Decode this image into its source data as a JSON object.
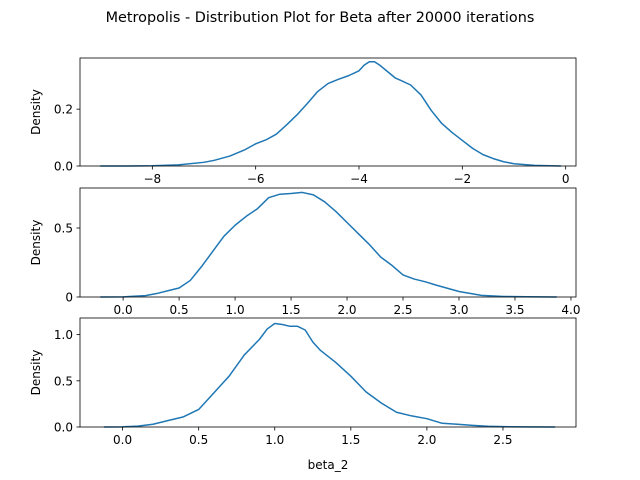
{
  "figure": {
    "suptitle": "Metropolis - Distribution Plot for Beta after 20000 iterations",
    "line_color": "#1f77b4"
  },
  "chart_data": [
    {
      "type": "line",
      "title": "",
      "xlabel": "",
      "ylabel": "Density",
      "xlim": [
        -9.4,
        0.2
      ],
      "ylim": [
        0,
        0.38
      ],
      "xticks": [
        -8,
        -6,
        -4,
        -2,
        0
      ],
      "xtick_labels": [
        "−8",
        "−6",
        "−4",
        "−2",
        "0"
      ],
      "yticks": [
        0.0,
        0.2
      ],
      "ytick_labels": [
        "0.0",
        "0.2"
      ],
      "grid": false,
      "series": [
        {
          "x": [
            -9.0,
            -8.5,
            -8.0,
            -7.5,
            -7.0,
            -6.8,
            -6.5,
            -6.2,
            -6.0,
            -5.8,
            -5.6,
            -5.4,
            -5.2,
            -5.0,
            -4.8,
            -4.6,
            -4.4,
            -4.2,
            -4.0,
            -3.9,
            -3.8,
            -3.7,
            -3.6,
            -3.5,
            -3.4,
            -3.3,
            -3.2,
            -3.0,
            -2.8,
            -2.6,
            -2.4,
            -2.2,
            -2.0,
            -1.8,
            -1.6,
            -1.4,
            -1.2,
            -1.0,
            -0.6,
            -0.1
          ],
          "y": [
            0.0,
            0.0,
            0.001,
            0.004,
            0.013,
            0.02,
            0.035,
            0.058,
            0.078,
            0.092,
            0.112,
            0.145,
            0.18,
            0.22,
            0.262,
            0.29,
            0.305,
            0.318,
            0.335,
            0.355,
            0.367,
            0.367,
            0.355,
            0.34,
            0.325,
            0.31,
            0.302,
            0.285,
            0.25,
            0.195,
            0.15,
            0.118,
            0.09,
            0.062,
            0.04,
            0.026,
            0.015,
            0.008,
            0.002,
            0.0
          ]
        }
      ]
    },
    {
      "type": "line",
      "title": "",
      "xlabel": "",
      "ylabel": "Density",
      "xlim": [
        -0.385,
        4.045
      ],
      "ylim": [
        0,
        0.79
      ],
      "xticks": [
        0.0,
        0.5,
        1.0,
        1.5,
        2.0,
        2.5,
        3.0,
        3.5,
        4.0
      ],
      "xtick_labels": [
        "0.0",
        "0.5",
        "1.0",
        "1.5",
        "2.0",
        "2.5",
        "3.0",
        "3.5",
        "4.0"
      ],
      "yticks": [
        0.0,
        0.5
      ],
      "ytick_labels": [
        "0",
        "0.5"
      ],
      "grid": false,
      "series": [
        {
          "x": [
            -0.2,
            0.0,
            0.2,
            0.3,
            0.4,
            0.5,
            0.6,
            0.7,
            0.8,
            0.9,
            1.0,
            1.1,
            1.2,
            1.3,
            1.4,
            1.5,
            1.6,
            1.7,
            1.8,
            1.9,
            2.0,
            2.1,
            2.2,
            2.3,
            2.4,
            2.5,
            2.6,
            2.7,
            2.8,
            3.0,
            3.2,
            3.4,
            3.6,
            3.87
          ],
          "y": [
            0.0,
            0.001,
            0.01,
            0.025,
            0.045,
            0.065,
            0.12,
            0.22,
            0.33,
            0.44,
            0.52,
            0.585,
            0.64,
            0.72,
            0.745,
            0.75,
            0.758,
            0.74,
            0.69,
            0.62,
            0.54,
            0.46,
            0.38,
            0.29,
            0.23,
            0.16,
            0.13,
            0.11,
            0.085,
            0.04,
            0.012,
            0.004,
            0.002,
            0.0
          ]
        }
      ]
    },
    {
      "type": "line",
      "title": "",
      "xlabel": "beta_2",
      "ylabel": "Density",
      "xlim": [
        -0.28,
        2.98
      ],
      "ylim": [
        0,
        1.18
      ],
      "xticks": [
        0.0,
        0.5,
        1.0,
        1.5,
        2.0,
        2.5
      ],
      "xtick_labels": [
        "0.0",
        "0.5",
        "1.0",
        "1.5",
        "2.0",
        "2.5"
      ],
      "yticks": [
        0.0,
        0.5,
        1.0
      ],
      "ytick_labels": [
        "0.0",
        "0.5",
        "1.0"
      ],
      "grid": false,
      "series": [
        {
          "x": [
            -0.12,
            0.0,
            0.1,
            0.2,
            0.3,
            0.4,
            0.5,
            0.6,
            0.7,
            0.8,
            0.9,
            0.95,
            1.0,
            1.05,
            1.1,
            1.15,
            1.2,
            1.25,
            1.3,
            1.4,
            1.5,
            1.6,
            1.7,
            1.8,
            1.9,
            2.0,
            2.1,
            2.2,
            2.3,
            2.4,
            2.5,
            2.65,
            2.84
          ],
          "y": [
            0.0,
            0.002,
            0.01,
            0.03,
            0.07,
            0.11,
            0.19,
            0.37,
            0.55,
            0.78,
            0.95,
            1.06,
            1.12,
            1.11,
            1.09,
            1.09,
            1.05,
            0.92,
            0.83,
            0.7,
            0.55,
            0.38,
            0.26,
            0.16,
            0.12,
            0.09,
            0.04,
            0.03,
            0.018,
            0.008,
            0.004,
            0.001,
            0.0
          ]
        }
      ]
    }
  ]
}
